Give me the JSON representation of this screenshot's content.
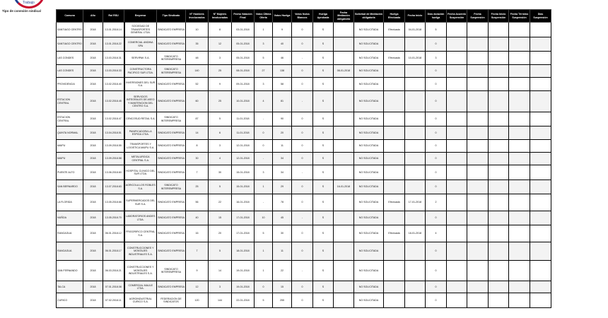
{
  "logo": {
    "text": "Trabajo"
  },
  "caption": "Tipo de conexión sindical",
  "table": {
    "headers": [
      "Comuna",
      "Año",
      "Rol RSU",
      "Empresa",
      "Tipo Sindicato",
      "N° Hombres Involucrados",
      "N° Mujeres Involucradas",
      "Fecha Votación Final",
      "Votos Última Oferta",
      "Votos Huelga",
      "Votos Nulos Blancos",
      "Huelga Aprobada",
      "Fecha Mediación obligatoria",
      "Solicitud de Mediación obligatoria",
      "Huelga Efectuada",
      "Fecha Inicio",
      "Días duración huelga",
      "Fecha Acuerdo Suspensión",
      "Fecha Suspensión",
      "Fecha Inicio Suspensión",
      "Fecha Término Suspensión",
      "Días Suspensión"
    ],
    "rows": [
      [
        "SANTIAGO CENTRO",
        "2018",
        "13.01.2018.14",
        "SOCIEDAD DE TRANSPORTES GENERAL LTDA.",
        "SINDICATO EMPRESA",
        "10",
        "8",
        "03-01-2018",
        "1",
        "9",
        "0",
        "S",
        "",
        "NO SOLICITADA",
        "Efectuada",
        "04-01-2018",
        "5",
        "",
        "",
        "",
        "",
        ""
      ],
      [
        "SANTIAGO CENTRO",
        "2018",
        "13.01.2018.22",
        "COMERCIAL ANDINA SPA",
        "SINDICATO EMPRESA",
        "35",
        "12",
        "05-01-2018",
        "3",
        "40",
        "0",
        "S",
        "",
        "NO SOLICITADA",
        "",
        "",
        "0",
        "",
        "",
        "",
        "",
        ""
      ],
      [
        "LAS CONDES",
        "2018",
        "13.03.2018.31",
        "SERVIPAK S.A.",
        "SINDICATO INTEREMPRESA",
        "48",
        "3",
        "05-01-2018",
        "5",
        "46",
        "-",
        "S",
        "",
        "NO SOLICITADA",
        "Efectuada",
        "10-01-2018",
        "3",
        "",
        "",
        "",
        "",
        ""
      ],
      [
        "LAS CONDES",
        "2018",
        "13.03.2018.33",
        "CONSTRUCTORA PACIFICO SUR LTDA.",
        "SINDICATO INTEREMPRESA",
        "140",
        "25",
        "08-01-2018",
        "27",
        "138",
        "0",
        "S",
        "08-01-2018",
        "NO SOLICITADA",
        "",
        "",
        "0",
        "",
        "",
        "",
        "",
        ""
      ],
      [
        "PROVIDENCIA",
        "2018",
        "13.02.2018.40",
        "INVERSIONES DEL SUR S.A.",
        "SINDICATO EMPRESA",
        "52",
        "9",
        "09-01-2018",
        "3",
        "58",
        "0",
        "S",
        "",
        "NO SOLICITADA",
        "",
        "",
        "0",
        "",
        "",
        "",
        "",
        ""
      ],
      [
        "ESTACION CENTRAL",
        "2018",
        "13.02.2018.45",
        "SERVICIOS INTEGRALES DE ASEO Y MANTENCION DEL CENTRO S.A.",
        "SINDICATO EMPRESA",
        "60",
        "25",
        "10-01-2018",
        "4",
        "81",
        "-",
        "S",
        "",
        "NO SOLICITADA",
        "",
        "",
        "0",
        "",
        "",
        "",
        "",
        ""
      ],
      [
        "ESTACION CENTRAL",
        "2018",
        "13.02.2018.47",
        "CENCOSUD RETAIL S.A.",
        "SINDICATO INTEREMPRESA",
        "87",
        "5",
        "11-01-2018",
        "-",
        "90",
        "0",
        "S",
        "",
        "NO SOLICITADA",
        "",
        "",
        "0",
        "",
        "",
        "",
        "",
        ""
      ],
      [
        "QUINTA NORMAL",
        "2018",
        "13.04.2018.51",
        "PANIFICADORA LA ESPIGA LTDA.",
        "SINDICATO EMPRESA",
        "14",
        "6",
        "11-01-2018",
        "0",
        "20",
        "0",
        "S",
        "",
        "NO SOLICITADA",
        "",
        "",
        "0",
        "",
        "",
        "",
        "",
        ""
      ],
      [
        "MAIPU",
        "2018",
        "13.09.2018.55",
        "TRANSPORTES Y LOGISTICA MAIPU S.A.",
        "SINDICATO EMPRESA",
        "8",
        "3",
        "12-01-2018",
        "0",
        "11",
        "0",
        "S",
        "",
        "NO SOLICITADA",
        "",
        "",
        "0",
        "",
        "",
        "",
        "",
        ""
      ],
      [
        "MAIPU",
        "2018",
        "13.09.2018.58",
        "METALURGICA CENTRAL S.A.",
        "SINDICATO EMPRESA",
        "30",
        "4",
        "12-01-2018",
        "-",
        "34",
        "0",
        "S",
        "",
        "NO SOLICITADA",
        "",
        "",
        "0",
        "",
        "",
        "",
        "",
        ""
      ],
      [
        "PUENTE ALTO",
        "2018",
        "13.06.2018.60",
        "HOSPITAL CLINICO DEL SUR LTDA.",
        "SINDICATO EMPRESA",
        "7",
        "30",
        "15-01-2018",
        "3",
        "34",
        "-",
        "S",
        "",
        "NO SOLICITADA",
        "",
        "",
        "0",
        "",
        "",
        "",
        "",
        ""
      ],
      [
        "SAN BERNARDO",
        "2018",
        "13.07.2018.63",
        "AGRICOLA LOS ROBLES S.A.",
        "SINDICATO INTEREMPRESA",
        "25",
        "5",
        "15-01-2018",
        "1",
        "29",
        "0",
        "S",
        "16-01-2018",
        "NO SOLICITADA",
        "",
        "",
        "0",
        "",
        "",
        "",
        "",
        ""
      ],
      [
        "LA FLORIDA",
        "2018",
        "13.05.2018.66",
        "SUPERMERCADOS DEL SUR S.A.",
        "SINDICATO EMPRESA",
        "56",
        "22",
        "16-01-2018",
        "-",
        "78",
        "0",
        "S",
        "",
        "NO SOLICITADA",
        "Efectuada",
        "17-01-2018",
        "2",
        "",
        "",
        "",
        "",
        ""
      ],
      [
        "NUÑOA",
        "2018",
        "13.05.2018.70",
        "LABORATORIOS ANDES LTDA.",
        "SINDICATO EMPRESA",
        "40",
        "15",
        "17-01-2018",
        "10",
        "45",
        "-",
        "S",
        "",
        "NO SOLICITADA",
        "",
        "",
        "0",
        "",
        "",
        "",
        "",
        ""
      ],
      [
        "RANCAGUA",
        "2018",
        "06.01.2018.12",
        "FRIGORIFICO CENTRAL S.A.",
        "SINDICATO EMPRESA",
        "16",
        "20",
        "17-01-2018",
        "5",
        "30",
        "0",
        "S",
        "",
        "NO SOLICITADA",
        "Efectuada",
        "18-01-2018",
        "4",
        "",
        "",
        "",
        "",
        ""
      ],
      [
        "RANCAGUA",
        "2018",
        "06.01.2018.17",
        "CONSTRUCCIONES Y MONTAJES INDUSTRIALES S.A.",
        "SINDICATO EMPRESA",
        "7",
        "5",
        "18-01-2018",
        "1",
        "11",
        "0",
        "S",
        "",
        "NO SOLICITADA",
        "",
        "",
        "0",
        "",
        "",
        "",
        "",
        ""
      ],
      [
        "SAN FERNANDO",
        "2018",
        "06.03.2018.21",
        "CONSTRUCCIONES Y MONTAJES INDUSTRIALES S.A.",
        "SINDICATO INTEREMPRESA",
        "9",
        "14",
        "19-01-2018",
        "1",
        "22",
        "-",
        "S",
        "",
        "NO SOLICITADA",
        "",
        "",
        "0",
        "",
        "",
        "",
        "",
        ""
      ],
      [
        "TALCA",
        "2018",
        "07.01.2018.08",
        "COMERCIAL MAULE LTDA.",
        "SINDICATO EMPRESA",
        "12",
        "3",
        "19-01-2018",
        "0",
        "15",
        "0",
        "S",
        "",
        "NO SOLICITADA",
        "",
        "",
        "0",
        "",
        "",
        "",
        "",
        ""
      ],
      [
        "CURICO",
        "2018",
        "07.02.2018.11",
        "AGROINDUSTRIAL CURICO S.A.",
        "FEDERACION DE SINDICATOS",
        "120",
        "144",
        "22-01-2018",
        "5",
        "255",
        "0",
        "S",
        "",
        "NO SOLICITADA",
        "",
        "",
        "0",
        "",
        "",
        "",
        "",
        ""
      ]
    ]
  }
}
